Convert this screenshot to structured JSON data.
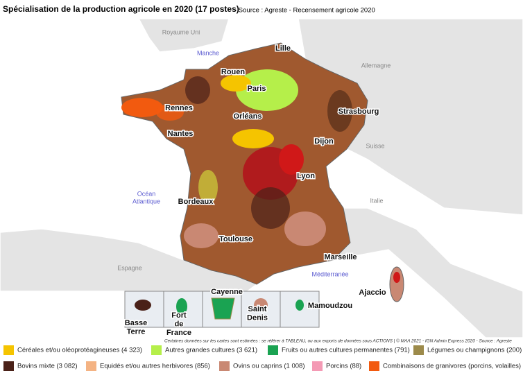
{
  "title": "Spécialisation de la production agricole en 2020 (17 postes)",
  "source": "- Source : Agreste - Recensement agricole 2020",
  "countries": [
    "Royaume Uni",
    "Allemagne",
    "Suisse",
    "Italie",
    "Espagne"
  ],
  "seas": [
    [
      "Manche"
    ],
    [
      "Océan",
      "Atlantique"
    ],
    [
      "Méditerranée"
    ]
  ],
  "cities": [
    "Lille",
    "Rouen",
    "Paris",
    "Rennes",
    "Strasbourg",
    "Orléans",
    "Nantes",
    "Dijon",
    "Lyon",
    "Bordeaux",
    "Toulouse",
    "Marseille",
    "Ajaccio"
  ],
  "insets": [
    [
      "Basse",
      "Terre"
    ],
    [
      "Fort",
      "de",
      "France"
    ],
    [
      "Cayenne"
    ],
    [
      "Saint",
      "Denis"
    ],
    [
      "Mamoudzou"
    ]
  ],
  "footnote": "Certaines données sur les cartes sont estimées : se référer à TABLEAU, ou aux exports de données sous ACTIONS | © MAA 2021 - IGN Admin Express 2020 - Source : Agreste",
  "legend": [
    {
      "label": "Céréales et/ou oléoprotéagineuses (4 323)",
      "color": "#f5c400"
    },
    {
      "label": "Autres grandes cultures (3 621)",
      "color": "#b5ef4a"
    },
    {
      "label": "Fruits ou autres cultures permanentes (791)",
      "color": "#1aa352"
    },
    {
      "label": "Légumes ou champignons (200)",
      "color": "#9c8a4a"
    },
    {
      "label": "Bovins mixte (3 082)",
      "color": "#4a2118"
    },
    {
      "label": "Equidés et/ou autres herbivores (856)",
      "color": "#f4b383"
    },
    {
      "label": "Ovins ou caprins (1 008)",
      "color": "#c98873"
    },
    {
      "label": "Porcins (88)",
      "color": "#f49ab5"
    },
    {
      "label": "Combinaisons de granivores (porcins, volailles)",
      "color": "#f25a0f"
    }
  ]
}
